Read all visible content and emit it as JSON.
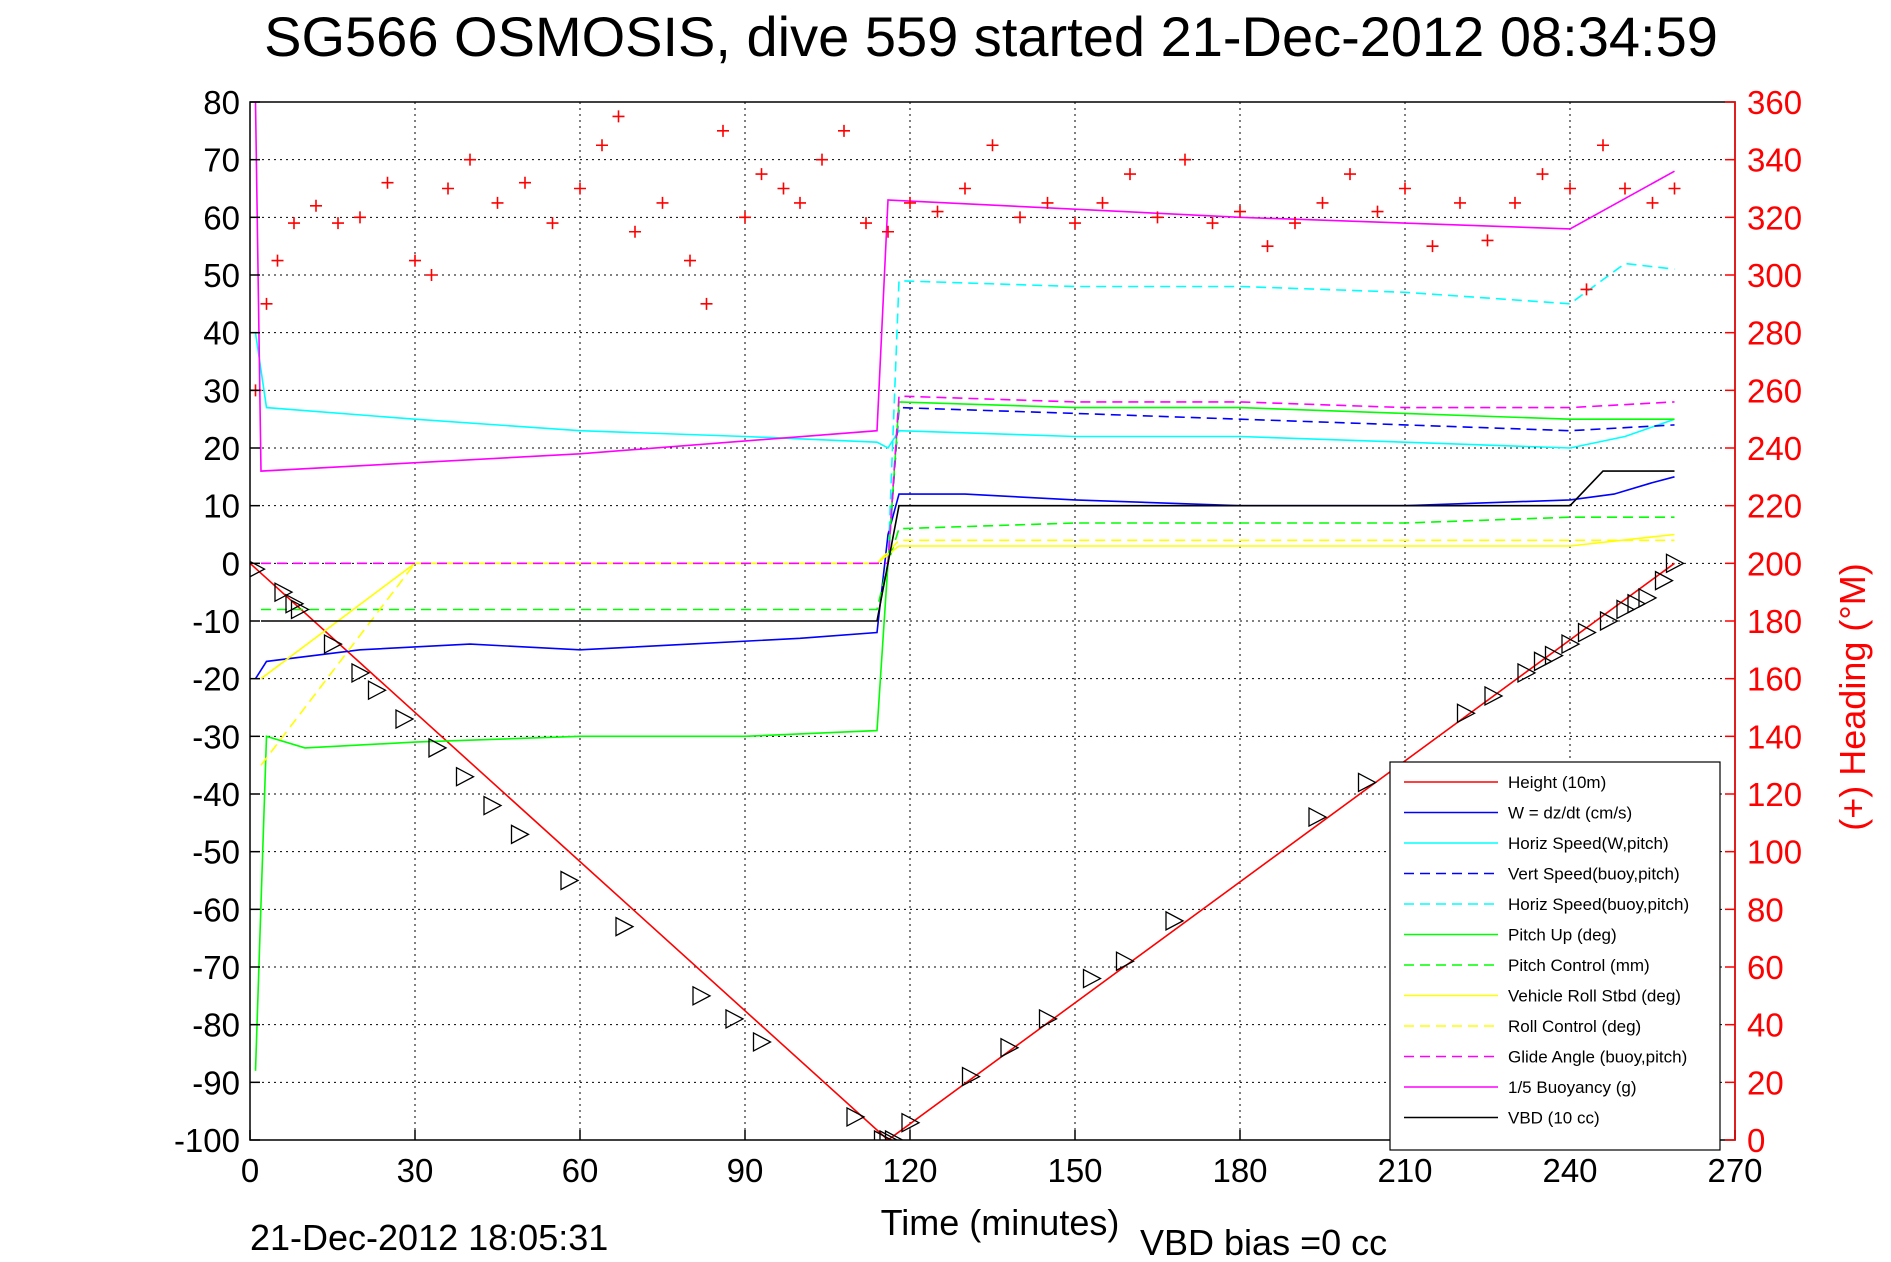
{
  "chart_data": {
    "type": "line",
    "title": "SG566 OSMOSIS, dive 559 started 21-Dec-2012 08:34:59",
    "xlabel": "Time (minutes)",
    "ylabel": "",
    "ylabel_right": "(+) Heading (°M)",
    "xlim": [
      0,
      270
    ],
    "ylim": [
      -100,
      80
    ],
    "ylim_right": [
      0,
      360
    ],
    "x_ticks": [
      "0",
      "30",
      "60",
      "90",
      "120",
      "150",
      "180",
      "210",
      "240",
      "270"
    ],
    "y_ticks": [
      "-100",
      "-90",
      "-80",
      "-70",
      "-60",
      "-50",
      "-40",
      "-30",
      "-20",
      "-10",
      "0",
      "10",
      "20",
      "30",
      "40",
      "50",
      "60",
      "70",
      "80"
    ],
    "y_ticks_right": [
      "0",
      "20",
      "40",
      "60",
      "80",
      "100",
      "120",
      "140",
      "160",
      "180",
      "200",
      "220",
      "240",
      "260",
      "280",
      "300",
      "320",
      "340",
      "360"
    ],
    "grid": true,
    "legend_position": "bottom-right",
    "footer_left": "21-Dec-2012 18:05:31",
    "footer_right": "VBD bias =0 cc",
    "series": [
      {
        "name": "Height (10m)",
        "color": "#ff0000",
        "style": "solid",
        "x": [
          0,
          116,
          259
        ],
        "y": [
          0,
          -100,
          0
        ]
      },
      {
        "name": "W = dz/dt (cm/s)",
        "color": "#0000ff",
        "style": "solid",
        "x": [
          1,
          3,
          20,
          40,
          60,
          80,
          100,
          114,
          116,
          118,
          130,
          150,
          180,
          210,
          240,
          248,
          255,
          259
        ],
        "y": [
          -20,
          -17,
          -15,
          -14,
          -15,
          -14,
          -13,
          -12,
          5,
          12,
          12,
          11,
          10,
          10,
          11,
          12,
          14,
          15
        ]
      },
      {
        "name": "Horiz Speed(W,pitch)",
        "color": "#00ffff",
        "style": "solid",
        "x": [
          1,
          3,
          30,
          60,
          90,
          114,
          116,
          118,
          150,
          180,
          210,
          240,
          250,
          259
        ],
        "y": [
          40,
          27,
          25,
          23,
          22,
          21,
          20,
          23,
          22,
          22,
          21,
          20,
          22,
          25
        ]
      },
      {
        "name": "Vert Speed(buoy,pitch)",
        "color": "#0000ff",
        "style": "dashed",
        "x": [
          116,
          118,
          150,
          180,
          210,
          240,
          259
        ],
        "y": [
          0,
          27,
          26,
          25,
          24,
          23,
          24
        ]
      },
      {
        "name": "Horiz Speed(buoy,pitch)",
        "color": "#00ffff",
        "style": "dashed",
        "x": [
          116,
          118,
          150,
          180,
          210,
          240,
          250,
          259
        ],
        "y": [
          0,
          49,
          48,
          48,
          47,
          45,
          52,
          51
        ]
      },
      {
        "name": "Pitch Up (deg)",
        "color": "#00ff00",
        "style": "solid",
        "x": [
          1,
          3,
          10,
          30,
          60,
          90,
          114,
          116,
          118,
          150,
          180,
          210,
          240,
          259
        ],
        "y": [
          -88,
          -30,
          -32,
          -31,
          -30,
          -30,
          -29,
          0,
          28,
          27,
          27,
          26,
          25,
          25
        ]
      },
      {
        "name": "Pitch Control (mm)",
        "color": "#00ff00",
        "style": "dashed",
        "x": [
          2,
          114,
          116,
          118,
          150,
          180,
          210,
          240,
          259
        ],
        "y": [
          -8,
          -8,
          0,
          6,
          7,
          7,
          7,
          8,
          8
        ]
      },
      {
        "name": "Vehicle Roll Stbd (deg)",
        "color": "#ffff00",
        "style": "solid",
        "x": [
          2,
          30,
          60,
          90,
          114,
          118,
          150,
          180,
          210,
          240,
          259
        ],
        "y": [
          -20,
          0,
          0,
          0,
          0,
          3,
          3,
          3,
          3,
          3,
          5
        ]
      },
      {
        "name": "Roll Control (deg)",
        "color": "#ffff00",
        "style": "dashed",
        "x": [
          2,
          30,
          60,
          90,
          114,
          118,
          150,
          180,
          210,
          240,
          259
        ],
        "y": [
          -35,
          0,
          0,
          0,
          0,
          4,
          4,
          4,
          4,
          4,
          4
        ]
      },
      {
        "name": "Glide Angle (buoy,pitch)",
        "color": "#ff00ff",
        "style": "dashed",
        "x": [
          2,
          114,
          116,
          118,
          150,
          180,
          210,
          240,
          259
        ],
        "y": [
          0,
          0,
          0,
          29,
          28,
          28,
          27,
          27,
          28
        ]
      },
      {
        "name": "1/5 Buoyancy (g)",
        "color": "#ff00ff",
        "style": "solid",
        "x": [
          1,
          2,
          60,
          114,
          116,
          180,
          240,
          259
        ],
        "y": [
          80,
          16,
          19,
          23,
          63,
          60,
          58,
          68
        ]
      },
      {
        "name": "VBD (10 cc)",
        "color": "#000000",
        "style": "solid",
        "x": [
          2,
          114,
          116,
          118,
          150,
          210,
          240,
          246,
          259
        ],
        "y": [
          -10,
          -10,
          0,
          10,
          10,
          10,
          10,
          16,
          16
        ]
      },
      {
        "name": "Heading",
        "color": "#ff0000",
        "style": "markers-plus",
        "axis": "right",
        "x": [
          1,
          3,
          5,
          8,
          12,
          16,
          20,
          25,
          30,
          33,
          36,
          40,
          45,
          50,
          55,
          60,
          64,
          67,
          70,
          75,
          80,
          83,
          86,
          90,
          93,
          97,
          100,
          104,
          108,
          112,
          116,
          120,
          125,
          130,
          135,
          140,
          145,
          150,
          155,
          160,
          165,
          170,
          175,
          180,
          185,
          190,
          195,
          200,
          205,
          210,
          215,
          220,
          225,
          230,
          235,
          240,
          243,
          246,
          250,
          255,
          259
        ],
        "y": [
          260,
          290,
          305,
          318,
          324,
          318,
          320,
          332,
          305,
          300,
          330,
          340,
          325,
          332,
          318,
          330,
          345,
          355,
          315,
          325,
          305,
          290,
          350,
          320,
          335,
          330,
          325,
          340,
          350,
          318,
          315,
          325,
          322,
          330,
          345,
          320,
          325,
          318,
          325,
          335,
          320,
          340,
          318,
          322,
          310,
          318,
          325,
          335,
          322,
          330,
          310,
          325,
          312,
          325,
          335,
          330,
          295,
          345,
          330,
          325,
          330
        ]
      },
      {
        "name": "Height markers",
        "color": "#000000",
        "style": "markers-triangle",
        "x": [
          1,
          6,
          8,
          9,
          15,
          20,
          23,
          28,
          34,
          39,
          44,
          49,
          58,
          68,
          82,
          88,
          93,
          110,
          115,
          116,
          117,
          120,
          131,
          138,
          145,
          153,
          159,
          168,
          194,
          203,
          221,
          226,
          232,
          235,
          237,
          240,
          243,
          247,
          250,
          252,
          254,
          257,
          259
        ],
        "y": [
          -1,
          -5,
          -7,
          -8,
          -14,
          -19,
          -22,
          -27,
          -32,
          -37,
          -42,
          -47,
          -55,
          -63,
          -75,
          -79,
          -83,
          -96,
          -100,
          -100,
          -100,
          -97,
          -89,
          -84,
          -79,
          -72,
          -69,
          -62,
          -44,
          -38,
          -26,
          -23,
          -19,
          -17,
          -16,
          -14,
          -12,
          -10,
          -8,
          -7,
          -6,
          -3,
          0
        ]
      }
    ]
  }
}
